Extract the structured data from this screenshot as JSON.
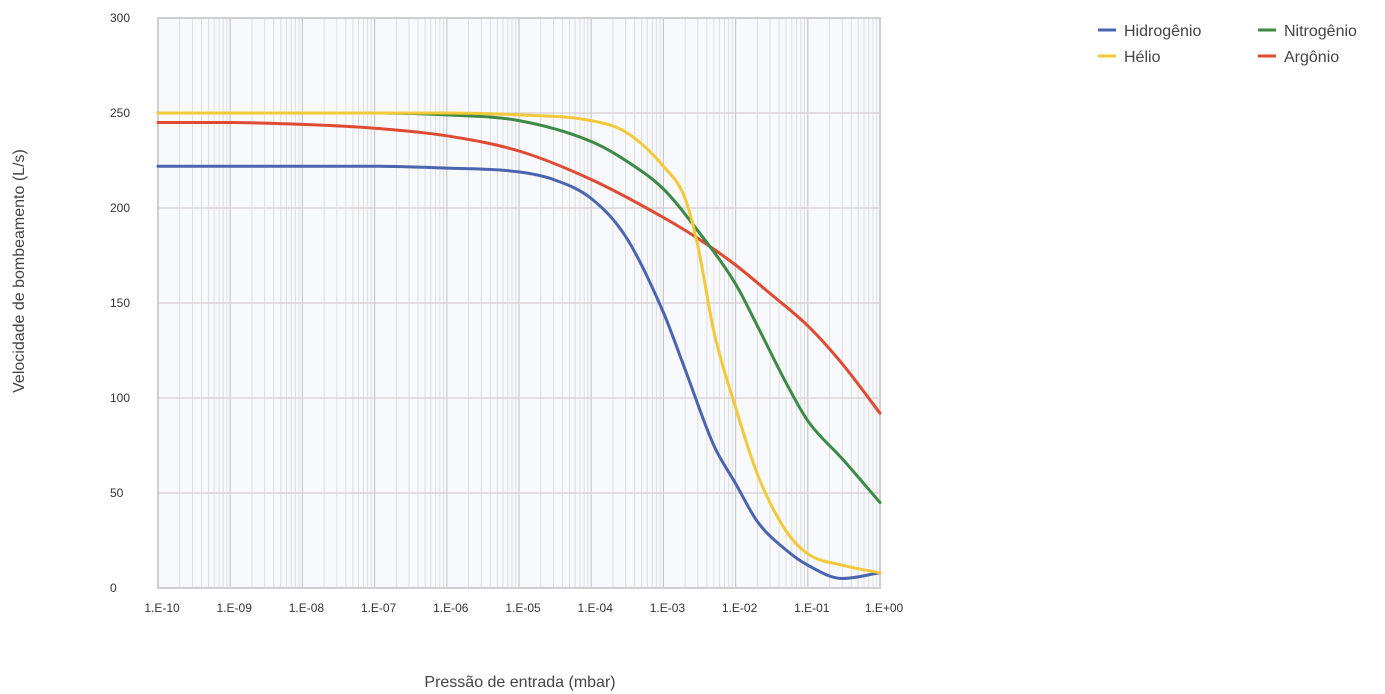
{
  "chart_data": {
    "type": "line",
    "title": "",
    "xlabel": "Pressão de entrada (mbar)",
    "ylabel": "Velocidade de bombeamento (L/s)",
    "x_scale": "log",
    "x_exponent_range": [
      -10,
      0
    ],
    "xlim": [
      1e-10,
      1
    ],
    "ylim": [
      0,
      300
    ],
    "x_tick_labels": [
      "1.E-10",
      "1.E-09",
      "1.E-08",
      "1.E-07",
      "1.E-06",
      "1.E-05",
      "1.E-04",
      "1.E-03",
      "1.E-02",
      "1.E-01",
      "1.E+00"
    ],
    "y_ticks": [
      0,
      50,
      100,
      150,
      200,
      250,
      300
    ],
    "grid": true,
    "legend_position": "top-right",
    "series": [
      {
        "name": "Hidrogênio",
        "color": "#4a64b0",
        "x": [
          1e-10,
          1e-09,
          1e-08,
          1e-07,
          1e-06,
          1e-05,
          3e-05,
          0.0001,
          0.0003,
          0.001,
          0.002,
          0.005,
          0.01,
          0.02,
          0.05,
          0.1,
          0.3,
          1
        ],
        "y": [
          222,
          222,
          222,
          222,
          221,
          219,
          215,
          205,
          185,
          145,
          115,
          75,
          55,
          35,
          20,
          12,
          5,
          8
        ]
      },
      {
        "name": "Hélio",
        "color": "#f3c93a",
        "x": [
          1e-10,
          1e-09,
          1e-08,
          1e-07,
          1e-06,
          1e-05,
          0.0001,
          0.0003,
          0.001,
          0.002,
          0.003,
          0.005,
          0.01,
          0.02,
          0.05,
          0.1,
          0.3,
          1
        ],
        "y": [
          250,
          250,
          250,
          250,
          250,
          249,
          246,
          240,
          222,
          205,
          180,
          135,
          95,
          60,
          30,
          18,
          12,
          8
        ]
      },
      {
        "name": "Nitrogênio",
        "color": "#3c8a45",
        "x": [
          1e-10,
          1e-09,
          1e-08,
          1e-07,
          1e-06,
          1e-05,
          0.0001,
          0.0003,
          0.001,
          0.003,
          0.01,
          0.02,
          0.05,
          0.1,
          0.3,
          1
        ],
        "y": [
          250,
          250,
          250,
          250,
          249,
          246,
          235,
          225,
          210,
          188,
          160,
          138,
          108,
          88,
          68,
          45
        ]
      },
      {
        "name": "Argônio",
        "color": "#e04a32",
        "x": [
          1e-10,
          1e-09,
          1e-08,
          1e-07,
          1e-06,
          1e-05,
          0.0001,
          0.001,
          0.003,
          0.01,
          0.03,
          0.1,
          0.3,
          1
        ],
        "y": [
          245,
          245,
          244,
          242,
          238,
          230,
          215,
          195,
          184,
          170,
          155,
          138,
          118,
          92
        ]
      }
    ]
  }
}
